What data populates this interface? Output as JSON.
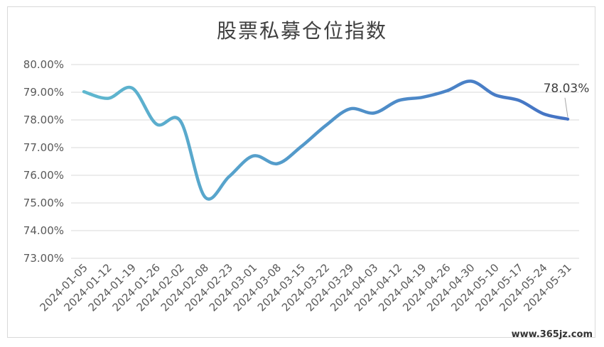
{
  "chart_data": {
    "type": "line",
    "title": "股票私募仓位指数",
    "y_ticks": [
      "80.00%",
      "79.00%",
      "78.00%",
      "77.00%",
      "76.00%",
      "75.00%",
      "74.00%",
      "73.00%"
    ],
    "ylim": [
      73.0,
      80.0
    ],
    "grid": true,
    "legend": "none",
    "categories": [
      "2024-01-05",
      "2024-01-12",
      "2024-01-19",
      "2024-01-26",
      "2024-02-02",
      "2024-02-08",
      "2024-02-23",
      "2024-03-01",
      "2024-03-08",
      "2024-03-15",
      "2024-03-22",
      "2024-03-29",
      "2024-04-03",
      "2024-04-12",
      "2024-04-19",
      "2024-04-26",
      "2024-04-30",
      "2024-05-10",
      "2024-05-17",
      "2024-05-24",
      "2024-05-31"
    ],
    "values": [
      79.02,
      78.78,
      79.15,
      77.85,
      77.95,
      75.22,
      75.95,
      76.7,
      76.42,
      77.05,
      77.8,
      78.4,
      78.25,
      78.7,
      78.82,
      79.05,
      79.4,
      78.9,
      78.7,
      78.22,
      78.03
    ],
    "last_label": "78.03%",
    "colors": {
      "line_start": "#5fb8cf",
      "line_end": "#4472c4",
      "grid": "#d9d9d9",
      "text": "#595959"
    }
  },
  "watermark": "www.365jz.com"
}
